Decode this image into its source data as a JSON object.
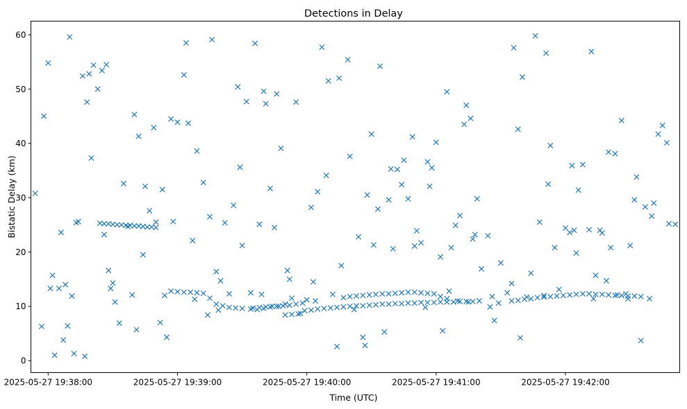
{
  "chart_data": {
    "type": "scatter",
    "title": "Detections in Delay",
    "xlabel": "Time (UTC)",
    "ylabel": "Bistatic Delay (km)",
    "x_axis": "time",
    "x_range": [
      "2025-05-27 19:37:52",
      "2025-05-27 19:42:53"
    ],
    "ylim": [
      -2.2,
      62.5
    ],
    "x_ticks": [
      "2025-05-27 19:38:00",
      "2025-05-27 19:39:00",
      "2025-05-27 19:40:00",
      "2025-05-27 19:41:00",
      "2025-05-27 19:42:00"
    ],
    "y_ticks": [
      "0",
      "10",
      "20",
      "30",
      "40",
      "50",
      "60"
    ],
    "grid": false,
    "legend": "none",
    "marker": "x",
    "color": "#1f77b4",
    "series": [
      {
        "x": [
          "2025-05-27 19:37:54",
          "2025-05-27 19:37:57",
          "2025-05-27 19:38:02",
          "2025-05-27 19:38:05",
          "2025-05-27 19:38:09",
          "2025-05-27 19:38:11",
          "2025-05-27 19:38:17",
          "2025-05-27 19:38:23",
          "2025-05-27 19:38:26",
          "2025-05-27 19:38:28",
          "2025-05-27 19:38:35",
          "2025-05-27 19:38:44",
          "2025-05-27 19:38:52",
          "2025-05-27 19:38:58",
          "2025-05-27 19:39:07",
          "2025-05-27 19:39:12",
          "2025-05-27 19:39:20",
          "2025-05-27 19:39:29",
          "2025-05-27 19:39:34",
          "2025-05-27 19:39:41",
          "2025-05-27 19:39:48",
          "2025-05-27 19:39:55",
          "2025-05-27 19:40:02",
          "2025-05-27 19:40:10",
          "2025-05-27 19:40:19",
          "2025-05-27 19:40:24",
          "2025-05-27 19:40:28",
          "2025-05-27 19:40:36",
          "2025-05-27 19:40:42",
          "2025-05-27 19:40:51",
          "2025-05-27 19:40:58",
          "2025-05-27 19:41:05",
          "2025-05-27 19:41:13",
          "2025-05-27 19:41:19",
          "2025-05-27 19:41:27",
          "2025-05-27 19:41:33",
          "2025-05-27 19:41:40",
          "2025-05-27 19:41:48",
          "2025-05-27 19:41:57",
          "2025-05-27 19:42:03",
          "2025-05-27 19:42:12",
          "2025-05-27 19:42:19",
          "2025-05-27 19:42:26",
          "2025-05-27 19:42:33",
          "2025-05-27 19:42:41",
          "2025-05-27 19:42:48",
          "2025-05-27 19:37:58",
          "2025-05-27 19:38:06",
          "2025-05-27 19:38:14",
          "2025-05-27 19:38:20",
          "2025-05-27 19:38:31",
          "2025-05-27 19:38:39",
          "2025-05-27 19:38:47",
          "2025-05-27 19:38:55",
          "2025-05-27 19:39:03",
          "2025-05-27 19:39:15",
          "2025-05-27 19:39:24",
          "2025-05-27 19:39:36",
          "2025-05-27 19:39:45",
          "2025-05-27 19:39:51",
          "2025-05-27 19:40:05",
          "2025-05-27 19:40:14",
          "2025-05-27 19:40:31",
          "2025-05-27 19:40:39",
          "2025-05-27 19:40:47",
          "2025-05-27 19:40:55",
          "2025-05-27 19:41:02",
          "2025-05-27 19:41:09",
          "2025-05-27 19:41:16",
          "2025-05-27 19:41:24",
          "2025-05-27 19:41:36",
          "2025-05-27 19:41:44",
          "2025-05-27 19:41:53",
          "2025-05-27 19:42:00",
          "2025-05-27 19:42:08",
          "2025-05-27 19:42:16",
          "2025-05-27 19:42:23",
          "2025-05-27 19:42:30",
          "2025-05-27 19:42:37",
          "2025-05-27 19:42:45",
          "2025-05-27 19:38:00",
          "2025-05-27 19:38:08",
          "2025-05-27 19:38:16",
          "2025-05-27 19:38:25",
          "2025-05-27 19:38:33",
          "2025-05-27 19:38:41",
          "2025-05-27 19:38:50",
          "2025-05-27 19:39:00",
          "2025-05-27 19:39:09",
          "2025-05-27 19:39:18",
          "2025-05-27 19:39:26",
          "2025-05-27 19:39:38",
          "2025-05-27 19:39:46",
          "2025-05-27 19:39:57",
          "2025-05-27 19:40:07",
          "2025-05-27 19:40:16",
          "2025-05-27 19:40:26",
          "2025-05-27 19:40:34",
          "2025-05-27 19:40:44",
          "2025-05-27 19:40:53",
          "2025-05-27 19:41:00",
          "2025-05-27 19:41:11",
          "2025-05-27 19:41:21",
          "2025-05-27 19:41:30",
          "2025-05-27 19:41:38",
          "2025-05-27 19:41:51",
          "2025-05-27 19:42:06",
          "2025-05-27 19:42:14",
          "2025-05-27 19:42:21",
          "2025-05-27 19:42:28",
          "2025-05-27 19:42:39",
          "2025-05-27 19:42:51",
          "2025-05-27 19:38:01",
          "2025-05-27 19:38:07",
          "2025-05-27 19:38:13",
          "2025-05-27 19:38:19",
          "2025-05-27 19:38:27",
          "2025-05-27 19:38:37",
          "2025-05-27 19:38:45",
          "2025-05-27 19:38:53",
          "2025-05-27 19:39:05",
          "2025-05-27 19:39:14",
          "2025-05-27 19:39:22",
          "2025-05-27 19:39:32",
          "2025-05-27 19:39:43",
          "2025-05-27 19:39:53",
          "2025-05-27 19:40:04",
          "2025-05-27 19:40:12",
          "2025-05-27 19:40:22",
          "2025-05-27 19:40:30",
          "2025-05-27 19:40:40",
          "2025-05-27 19:40:49",
          "2025-05-27 19:40:57",
          "2025-05-27 19:41:07",
          "2025-05-27 19:41:17",
          "2025-05-27 19:41:26",
          "2025-05-27 19:41:35",
          "2025-05-27 19:41:46",
          "2025-05-27 19:41:55",
          "2025-05-27 19:42:04",
          "2025-05-27 19:42:13",
          "2025-05-27 19:42:24",
          "2025-05-27 19:42:35",
          "2025-05-27 19:42:47",
          "2025-05-27 19:38:03",
          "2025-05-27 19:38:10",
          "2025-05-27 19:38:18",
          "2025-05-27 19:38:29",
          "2025-05-27 19:38:40",
          "2025-05-27 19:38:49",
          "2025-05-27 19:38:57",
          "2025-05-27 19:39:08",
          "2025-05-27 19:39:19",
          "2025-05-27 19:39:30",
          "2025-05-27 19:39:40",
          "2025-05-27 19:39:50",
          "2025-05-27 19:40:00",
          "2025-05-27 19:40:09",
          "2025-05-27 19:40:20",
          "2025-05-27 19:40:33",
          "2025-05-27 19:40:45",
          "2025-05-27 19:40:56",
          "2025-05-27 19:41:06",
          "2025-05-27 19:41:18",
          "2025-05-27 19:41:29",
          "2025-05-27 19:41:42",
          "2025-05-27 19:41:50",
          "2025-05-27 19:42:02",
          "2025-05-27 19:42:11",
          "2025-05-27 19:42:20",
          "2025-05-27 19:42:32",
          "2025-05-27 19:42:43",
          "2025-05-27 19:38:12",
          "2025-05-27 19:38:21",
          "2025-05-27 19:38:30",
          "2025-05-27 19:38:42",
          "2025-05-27 19:38:54",
          "2025-05-27 19:39:04",
          "2025-05-27 19:39:16",
          "2025-05-27 19:39:28",
          "2025-05-27 19:39:39",
          "2025-05-27 19:39:52",
          "2025-05-27 19:40:03",
          "2025-05-27 19:40:15",
          "2025-05-27 19:40:27",
          "2025-05-27 19:40:38",
          "2025-05-27 19:40:50",
          "2025-05-27 19:41:03",
          "2025-05-27 19:41:14",
          "2025-05-27 19:41:25",
          "2025-05-27 19:41:39",
          "2025-05-27 19:41:52",
          "2025-05-27 19:42:05",
          "2025-05-27 19:42:17",
          "2025-05-27 19:42:29",
          "2025-05-27 19:42:40",
          "2025-05-27 19:38:24",
          "2025-05-27 19:38:26",
          "2025-05-27 19:38:28",
          "2025-05-27 19:38:30",
          "2025-05-27 19:38:32",
          "2025-05-27 19:38:34",
          "2025-05-27 19:38:36",
          "2025-05-27 19:38:38",
          "2025-05-27 19:38:40",
          "2025-05-27 19:38:42",
          "2025-05-27 19:38:44",
          "2025-05-27 19:38:46",
          "2025-05-27 19:38:48",
          "2025-05-27 19:38:50",
          "2025-05-27 19:38:57",
          "2025-05-27 19:39:00",
          "2025-05-27 19:39:03",
          "2025-05-27 19:39:06",
          "2025-05-27 19:39:09",
          "2025-05-27 19:39:12",
          "2025-05-27 19:39:15",
          "2025-05-27 19:39:18",
          "2025-05-27 19:39:21",
          "2025-05-27 19:39:24",
          "2025-05-27 19:39:27",
          "2025-05-27 19:39:30",
          "2025-05-27 19:39:34",
          "2025-05-27 19:39:37",
          "2025-05-27 19:39:40",
          "2025-05-27 19:39:43",
          "2025-05-27 19:39:46",
          "2025-05-27 19:39:49",
          "2025-05-27 19:39:52",
          "2025-05-27 19:39:55",
          "2025-05-27 19:39:58",
          "2025-05-27 19:40:17",
          "2025-05-27 19:40:20",
          "2025-05-27 19:40:23",
          "2025-05-27 19:40:26",
          "2025-05-27 19:40:29",
          "2025-05-27 19:40:32",
          "2025-05-27 19:40:35",
          "2025-05-27 19:40:38",
          "2025-05-27 19:40:41",
          "2025-05-27 19:40:44",
          "2025-05-27 19:40:47",
          "2025-05-27 19:40:50",
          "2025-05-27 19:40:53",
          "2025-05-27 19:40:56",
          "2025-05-27 19:40:59",
          "2025-05-27 19:41:02",
          "2025-05-27 19:41:05",
          "2025-05-27 19:41:10",
          "2025-05-27 19:41:15",
          "2025-05-27 19:41:35",
          "2025-05-27 19:41:38",
          "2025-05-27 19:41:41",
          "2025-05-27 19:41:44",
          "2025-05-27 19:41:47",
          "2025-05-27 19:41:50",
          "2025-05-27 19:41:53",
          "2025-05-27 19:41:56",
          "2025-05-27 19:41:59",
          "2025-05-27 19:42:02",
          "2025-05-27 19:42:05",
          "2025-05-27 19:42:08",
          "2025-05-27 19:42:11",
          "2025-05-27 19:42:14",
          "2025-05-27 19:42:17",
          "2025-05-27 19:42:20",
          "2025-05-27 19:42:23",
          "2025-05-27 19:42:26",
          "2025-05-27 19:42:29",
          "2025-05-27 19:42:32",
          "2025-05-27 19:42:35",
          "2025-05-27 19:39:35",
          "2025-05-27 19:39:38",
          "2025-05-27 19:39:41",
          "2025-05-27 19:39:44",
          "2025-05-27 19:39:47",
          "2025-05-27 19:39:50",
          "2025-05-27 19:39:53",
          "2025-05-27 19:39:56",
          "2025-05-27 19:39:59",
          "2025-05-27 19:40:02",
          "2025-05-27 19:40:05",
          "2025-05-27 19:40:08",
          "2025-05-27 19:40:11",
          "2025-05-27 19:40:14",
          "2025-05-27 19:40:17",
          "2025-05-27 19:40:20",
          "2025-05-27 19:40:23",
          "2025-05-27 19:40:26",
          "2025-05-27 19:40:29",
          "2025-05-27 19:40:32",
          "2025-05-27 19:40:35",
          "2025-05-27 19:40:38",
          "2025-05-27 19:40:41",
          "2025-05-27 19:40:44",
          "2025-05-27 19:40:47",
          "2025-05-27 19:40:50",
          "2025-05-27 19:40:53",
          "2025-05-27 19:40:56",
          "2025-05-27 19:40:59",
          "2025-05-27 19:41:02",
          "2025-05-27 19:41:05",
          "2025-05-27 19:41:08",
          "2025-05-27 19:41:11",
          "2025-05-27 19:41:14",
          "2025-05-27 19:41:17",
          "2025-05-27 19:41:20"
        ],
        "y": [
          30.8,
          6.3,
          15.7,
          13.3,
          6.4,
          11.9,
          0.8,
          50.0,
          23.2,
          16.6,
          32.6,
          19.5,
          7.0,
          25.6,
          22.1,
          32.8,
          14.7,
          35.6,
          12.5,
          47.3,
          39.1,
          47.6,
          28.2,
          51.5,
          55.4,
          22.8,
          30.5,
          5.3,
          35.2,
          23.9,
          35.5,
          49.5,
          43.5,
          29.8,
          7.4,
          12.5,
          52.2,
          25.5,
          13.1,
          35.9,
          56.9,
          14.7,
          44.2,
          33.8,
          29.0,
          25.2,
          45.0,
          23.6,
          25.6,
          37.3,
          10.8,
          12.1,
          27.6,
          4.3,
          52.6,
          26.5,
          12.3,
          58.4,
          24.5,
          16.6,
          31.1,
          2.6,
          21.3,
          35.3,
          29.8,
          9.8,
          19.1,
          24.9,
          44.6,
          23.0,
          57.6,
          16.1,
          39.6,
          24.4,
          36.1,
          24.0,
          38.1,
          21.2,
          28.3,
          43.3,
          54.8,
          14.0,
          52.4,
          53.4,
          6.9,
          5.7,
          25.5,
          43.9,
          38.6,
          16.4,
          28.6,
          25.1,
          49.1,
          8.7,
          57.7,
          17.5,
          4.3,
          54.2,
          32.4,
          21.7,
          40.2,
          26.7,
          16.9,
          18.0,
          42.6,
          56.6,
          31.4,
          15.7,
          20.8,
          12.3,
          11.4,
          25.1,
          13.3,
          3.8,
          25.4,
          52.8,
          54.5,
          24.7,
          32.1,
          31.5,
          43.7,
          8.4,
          25.4,
          47.7,
          31.7,
          11.5,
          11.0,
          12.2,
          9.4,
          41.7,
          20.6,
          41.2,
          32.1,
          20.8,
          22.4,
          11.8,
          14.2,
          59.8,
          20.8,
          24.0,
          11.4,
          12.1,
          3.7,
          40.1,
          1.0,
          59.6,
          47.6,
          13.3,
          45.3,
          42.9,
          44.5,
          11.3,
          9.3,
          21.2,
          49.6,
          10.4,
          11.2,
          34.1,
          37.6,
          27.9,
          36.9,
          36.6,
          12.8,
          23.2,
          10.6,
          11.7,
          12.0,
          23.6,
          24.1,
          38.4,
          29.6,
          41.7,
          1.3,
          54.4,
          14.3,
          41.3,
          12.0,
          58.5,
          59.1,
          50.4,
          12.2,
          15.0,
          14.5,
          52.0,
          2.8,
          29.6,
          21.1,
          5.5,
          47.0,
          9.9,
          4.2,
          32.5,
          19.8,
          23.5,
          11.4,
          26.6,
          25.3,
          25.2,
          25.2,
          25.1,
          25.0,
          25.0,
          24.9,
          24.9,
          24.8,
          24.8,
          24.7,
          24.6,
          24.6,
          24.5,
          12.8,
          12.7,
          12.6,
          12.6,
          12.5,
          12.4,
          11.5,
          10.4,
          10.1,
          9.8,
          9.7,
          9.6,
          9.5,
          9.4,
          9.6,
          9.9,
          10.0,
          10.1,
          10.2,
          10.4,
          10.6,
          11.6,
          11.8,
          11.9,
          12.0,
          12.1,
          12.2,
          12.3,
          12.3,
          12.4,
          12.5,
          12.6,
          12.6,
          12.5,
          12.4,
          12.3,
          11.8,
          11.4,
          11.0,
          10.8,
          11.0,
          11.1,
          11.3,
          11.4,
          11.6,
          11.7,
          11.8,
          11.9,
          12.0,
          12.1,
          12.2,
          12.3,
          12.3,
          12.2,
          12.2,
          12.1,
          12.0,
          12.0,
          11.9,
          11.9,
          11.8,
          9.7,
          9.8,
          9.9,
          10.0,
          10.0,
          8.4,
          8.5,
          8.6,
          9.2,
          9.3,
          9.5,
          9.6,
          9.7,
          9.8,
          9.9,
          10.0,
          10.1,
          10.1,
          10.2,
          10.3,
          10.4,
          10.4,
          10.5,
          10.5,
          10.6,
          10.6,
          10.7,
          10.7,
          10.7,
          10.8,
          10.8,
          10.8,
          10.9,
          10.9,
          10.9,
          11.0
        ]
      }
    ]
  }
}
